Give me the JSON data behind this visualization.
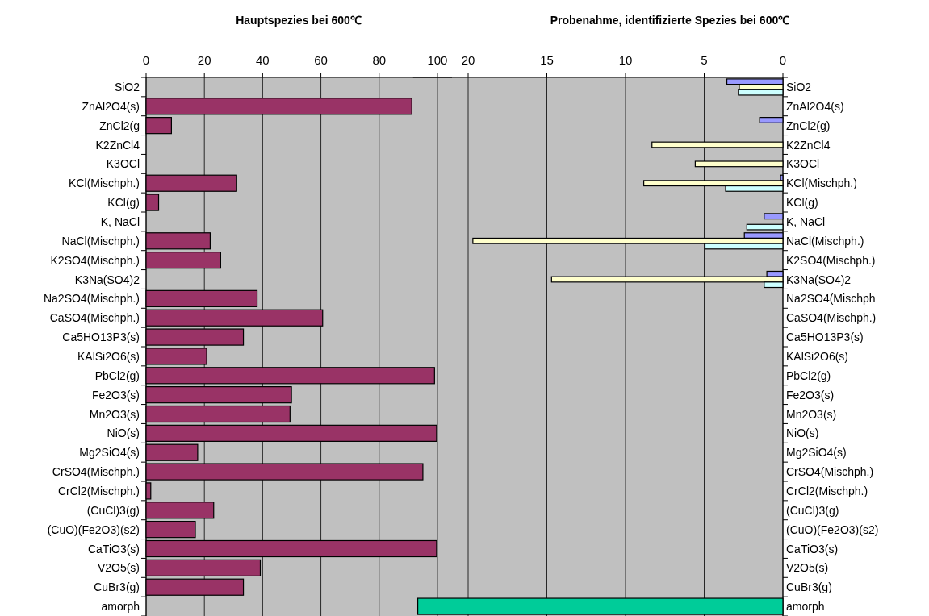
{
  "chart_data": [
    {
      "type": "bar",
      "orientation": "horizontal",
      "title": "Hauptspezies bei 600℃",
      "categories": [
        "SiO2",
        "ZnAl2O4(s)",
        "ZnCl2(g",
        "K2ZnCl4",
        "K3OCl",
        "KCl(Mischph.)",
        "KCl(g)",
        "K, NaCl",
        "NaCl(Mischph.)",
        "K2SO4(Mischph.)",
        "K3Na(SO4)2",
        "Na2SO4(Mischph.)",
        "CaSO4(Mischph.)",
        "Ca5HO13P3(s)",
        "KAlSi2O6(s)",
        "PbCl2(g)",
        "Fe2O3(s)",
        "Mn2O3(s)",
        "NiO(s)",
        "Mg2SiO4(s)",
        "CrSO4(Mischph.)",
        "CrCl2(Mischph.)",
        "(CuCl)3(g)",
        "(CuO)(Fe2O3)(s2)",
        "CaTiO3(s)",
        "V2O5(s)",
        "CuBr3(g)",
        "amorph"
      ],
      "xlim": [
        0,
        105
      ],
      "xticks": [
        0,
        20,
        40,
        60,
        80,
        100
      ],
      "grid": "x",
      "series": [
        {
          "color": "#993366",
          "values": [
            null,
            91.2,
            8.7,
            null,
            null,
            31.1,
            4.3,
            null,
            22.0,
            25.6,
            null,
            38.1,
            60.6,
            33.4,
            20.8,
            99.0,
            49.9,
            49.4,
            99.7,
            17.7,
            95.0,
            1.6,
            23.2,
            16.9,
            99.7,
            39.2,
            33.4,
            null
          ]
        }
      ]
    },
    {
      "type": "bar",
      "orientation": "horizontal",
      "title": "Probenahme, identifizierte Spezies bei 600℃",
      "categories": [
        "SiO2",
        "ZnAl2O4(s)",
        "ZnCl2(g)",
        "K2ZnCl4",
        "K3OCl",
        "KCl(Mischph.)",
        "KCl(g)",
        "K, NaCl",
        "NaCl(Mischph.)",
        "K2SO4(Mischph.)",
        "K3Na(SO4)2",
        "Na2SO4(Mischph",
        "CaSO4(Mischph.)",
        "Ca5HO13P3(s)",
        "KAlSi2O6(s)",
        "PbCl2(g)",
        "Fe2O3(s)",
        "Mn2O3(s)",
        "NiO(s)",
        "Mg2SiO4(s)",
        "CrSO4(Mischph.)",
        "CrCl2(Mischph.)",
        "(CuCl)3(g)",
        "(CuO)(Fe2O3)(s2)",
        "CaTiO3(s)",
        "V2O5(s)",
        "CuBr3(g)",
        "amorph"
      ],
      "xlim": [
        23.5,
        0
      ],
      "xticks": [
        20,
        15,
        10,
        5,
        0
      ],
      "grid": "x",
      "series": [
        {
          "color": "#9999ff",
          "values": [
            3.56,
            null,
            1.48,
            null,
            null,
            0.15,
            null,
            1.19,
            2.45,
            null,
            1.02,
            null,
            null,
            null,
            null,
            null,
            null,
            null,
            null,
            null,
            null,
            null,
            null,
            null,
            null,
            null,
            null,
            null
          ]
        },
        {
          "color": "#ffffcc",
          "values": [
            2.77,
            null,
            null,
            8.32,
            5.57,
            8.84,
            null,
            null,
            19.7,
            null,
            14.7,
            null,
            null,
            null,
            null,
            null,
            null,
            null,
            null,
            null,
            null,
            null,
            null,
            null,
            null,
            null,
            null,
            null
          ]
        },
        {
          "color": "#ccffff",
          "values": [
            2.83,
            null,
            null,
            null,
            null,
            3.64,
            null,
            2.29,
            4.95,
            null,
            1.19,
            null,
            null,
            null,
            null,
            null,
            null,
            null,
            null,
            null,
            null,
            null,
            null,
            null,
            null,
            null,
            null,
            null
          ]
        },
        {
          "color": "#00cc99",
          "values": [
            null,
            null,
            null,
            null,
            null,
            null,
            null,
            null,
            null,
            null,
            null,
            null,
            null,
            null,
            null,
            null,
            null,
            null,
            null,
            null,
            null,
            null,
            null,
            null,
            null,
            null,
            null,
            23.2
          ]
        }
      ]
    }
  ]
}
